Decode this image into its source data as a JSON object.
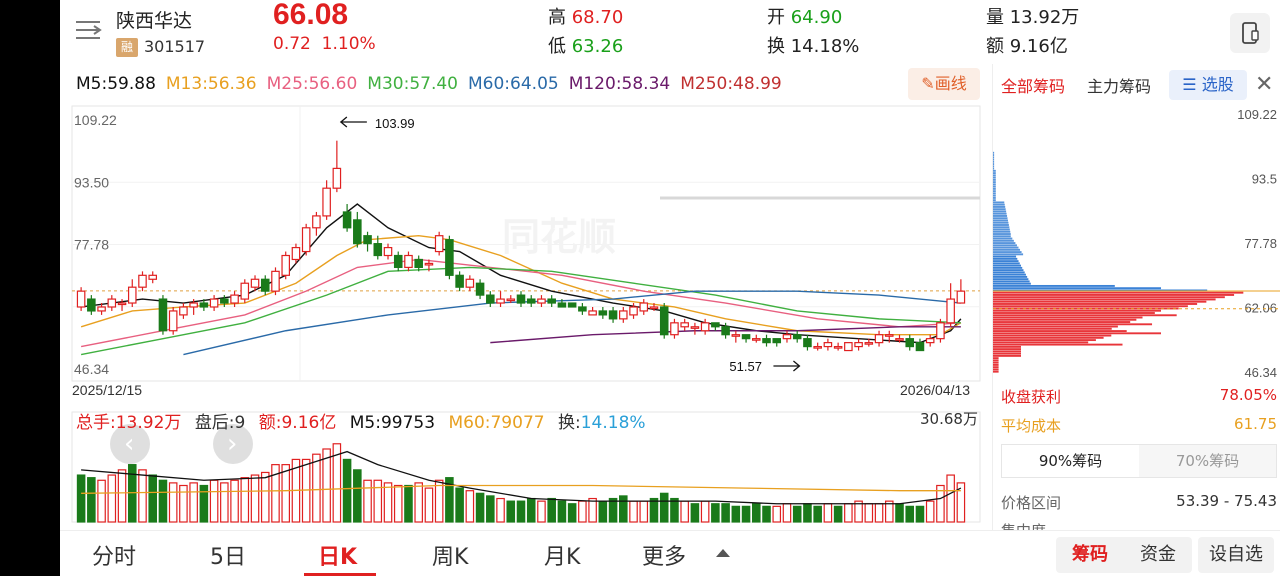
{
  "header": {
    "stock_name": "陕西华达",
    "margin_badge": "融",
    "stock_code": "301517",
    "price": "66.08",
    "change": "0.72",
    "change_pct": "1.10%",
    "high_label": "高",
    "high_value": "68.70",
    "low_label": "低",
    "low_value": "63.26",
    "open_label": "开",
    "open_value": "64.90",
    "turnover_label": "换",
    "turnover_value": "14.18%",
    "volume_label": "量",
    "volume_value": "13.92万",
    "amount_label": "额",
    "amount_value": "9.16亿"
  },
  "ma_legend": [
    {
      "text": "M5:59.88",
      "color": "#111111"
    },
    {
      "text": "M13:56.36",
      "color": "#e8a020"
    },
    {
      "text": "M25:56.60",
      "color": "#e86080"
    },
    {
      "text": "M30:57.40",
      "color": "#40b040"
    },
    {
      "text": "M60:64.05",
      "color": "#2a6aa8"
    },
    {
      "text": "M120:58.34",
      "color": "#6a1a6a"
    },
    {
      "text": "M250:48.99",
      "color": "#c03030"
    }
  ],
  "draw_button": "画线",
  "chart_data": {
    "type": "candlestick",
    "price_axis_labels": [
      "109.22",
      "93.50",
      "77.78",
      "46.34"
    ],
    "date_start": "2025/12/15",
    "date_end": "2026/04/13",
    "high_marker": "103.99",
    "low_marker": "51.57",
    "watermark": "同花顺",
    "candles": [
      [
        62,
        66,
        61,
        67
      ],
      [
        64,
        61,
        60,
        65
      ],
      [
        61,
        62,
        60,
        63
      ],
      [
        62,
        64,
        61,
        65
      ],
      [
        63,
        63,
        61,
        64
      ],
      [
        63,
        67,
        62,
        69
      ],
      [
        67,
        70,
        66,
        71
      ],
      [
        69,
        70,
        68,
        71
      ],
      [
        64,
        56,
        55,
        65
      ],
      [
        56,
        61,
        55,
        62
      ],
      [
        60,
        62,
        59,
        63
      ],
      [
        62,
        63,
        60,
        64
      ],
      [
        63,
        62,
        61,
        64
      ],
      [
        62,
        64,
        61,
        65
      ],
      [
        64,
        63,
        62,
        65
      ],
      [
        63,
        65,
        62,
        66
      ],
      [
        64,
        68,
        63,
        69
      ],
      [
        67,
        69,
        66,
        70
      ],
      [
        69,
        66,
        65,
        70
      ],
      [
        66,
        71,
        65,
        72
      ],
      [
        70,
        75,
        69,
        76
      ],
      [
        74,
        77,
        73,
        78
      ],
      [
        76,
        82,
        75,
        83
      ],
      [
        82,
        85,
        80,
        86
      ],
      [
        85,
        92,
        84,
        94
      ],
      [
        92,
        97,
        91,
        104
      ],
      [
        86,
        82,
        81,
        88
      ],
      [
        84,
        78,
        77,
        86
      ],
      [
        80,
        78,
        76,
        81
      ],
      [
        78,
        75,
        74,
        80
      ],
      [
        75,
        77,
        74,
        78
      ],
      [
        75,
        72,
        71,
        76
      ],
      [
        72,
        75,
        71,
        76
      ],
      [
        74,
        72,
        71,
        75
      ],
      [
        73,
        73,
        71,
        74
      ],
      [
        76,
        80,
        75,
        81
      ],
      [
        79,
        70,
        69,
        80
      ],
      [
        70,
        67,
        66,
        71
      ],
      [
        67,
        69,
        66,
        70
      ],
      [
        68,
        65,
        64,
        69
      ],
      [
        65,
        63,
        62,
        66
      ],
      [
        63,
        64,
        62,
        66
      ],
      [
        64,
        64,
        63,
        65
      ],
      [
        65,
        63,
        62,
        66
      ],
      [
        64,
        63,
        62,
        65
      ],
      [
        63,
        64,
        62,
        65
      ],
      [
        64,
        63,
        62,
        65
      ],
      [
        63,
        62,
        62,
        64
      ],
      [
        63,
        62,
        62,
        63
      ],
      [
        62,
        61,
        60,
        63
      ],
      [
        60,
        61,
        60,
        62
      ],
      [
        61,
        60,
        59,
        62
      ],
      [
        61,
        59,
        58,
        62
      ],
      [
        59,
        61,
        58,
        62
      ],
      [
        60,
        62,
        59,
        63
      ],
      [
        61,
        63,
        60,
        64
      ],
      [
        62,
        62,
        61,
        63
      ],
      [
        62,
        55,
        54,
        63
      ],
      [
        55,
        58,
        54,
        59
      ],
      [
        57,
        58,
        56,
        59
      ],
      [
        57,
        57,
        55,
        58
      ],
      [
        56,
        58,
        55,
        59
      ],
      [
        58,
        57,
        56,
        58
      ],
      [
        57,
        55,
        54,
        58
      ],
      [
        55,
        55,
        53,
        56
      ],
      [
        55,
        54,
        53,
        55
      ],
      [
        54,
        54,
        53,
        55
      ],
      [
        54,
        53,
        52,
        55
      ],
      [
        54,
        53,
        52,
        54
      ],
      [
        54,
        55,
        53,
        56
      ],
      [
        55,
        54,
        53,
        56
      ],
      [
        54,
        52,
        51,
        55
      ],
      [
        52,
        52,
        51,
        53
      ],
      [
        52,
        53,
        51,
        54
      ],
      [
        52,
        52,
        51,
        53
      ],
      [
        51,
        53,
        51,
        53
      ],
      [
        52,
        53,
        51,
        54
      ],
      [
        53,
        53,
        52,
        54
      ],
      [
        53,
        55,
        52,
        56
      ],
      [
        55,
        55,
        53,
        56
      ],
      [
        54,
        54,
        53,
        55
      ],
      [
        54,
        52,
        51,
        55
      ],
      [
        53,
        51,
        51,
        54
      ],
      [
        53,
        54,
        52,
        55
      ],
      [
        54,
        58,
        53,
        59
      ],
      [
        58,
        64,
        57,
        68
      ],
      [
        63,
        66,
        63,
        69
      ]
    ],
    "volumes": [
      [
        18,
        "d"
      ],
      [
        17,
        "d"
      ],
      [
        16,
        "u"
      ],
      [
        18,
        "u"
      ],
      [
        20,
        "u"
      ],
      [
        22,
        "d"
      ],
      [
        20,
        "u"
      ],
      [
        18,
        "d"
      ],
      [
        16,
        "d"
      ],
      [
        15,
        "u"
      ],
      [
        14,
        "u"
      ],
      [
        15,
        "u"
      ],
      [
        14,
        "d"
      ],
      [
        16,
        "u"
      ],
      [
        15,
        "u"
      ],
      [
        16,
        "u"
      ],
      [
        17,
        "u"
      ],
      [
        18,
        "u"
      ],
      [
        19,
        "u"
      ],
      [
        22,
        "u"
      ],
      [
        22,
        "u"
      ],
      [
        24,
        "u"
      ],
      [
        24,
        "u"
      ],
      [
        26,
        "u"
      ],
      [
        28,
        "u"
      ],
      [
        30,
        "u"
      ],
      [
        24,
        "d"
      ],
      [
        20,
        "d"
      ],
      [
        16,
        "u"
      ],
      [
        16,
        "u"
      ],
      [
        15,
        "u"
      ],
      [
        14,
        "u"
      ],
      [
        14,
        "d"
      ],
      [
        15,
        "u"
      ],
      [
        13,
        "u"
      ],
      [
        16,
        "u"
      ],
      [
        17,
        "d"
      ],
      [
        13,
        "d"
      ],
      [
        12,
        "u"
      ],
      [
        11,
        "d"
      ],
      [
        10,
        "d"
      ],
      [
        9,
        "u"
      ],
      [
        8,
        "d"
      ],
      [
        8,
        "d"
      ],
      [
        9,
        "d"
      ],
      [
        8,
        "u"
      ],
      [
        9,
        "d"
      ],
      [
        8,
        "d"
      ],
      [
        7,
        "d"
      ],
      [
        8,
        "u"
      ],
      [
        9,
        "u"
      ],
      [
        8,
        "d"
      ],
      [
        9,
        "d"
      ],
      [
        10,
        "d"
      ],
      [
        8,
        "u"
      ],
      [
        8,
        "u"
      ],
      [
        9,
        "d"
      ],
      [
        11,
        "d"
      ],
      [
        9,
        "d"
      ],
      [
        8,
        "u"
      ],
      [
        7,
        "d"
      ],
      [
        8,
        "u"
      ],
      [
        7,
        "d"
      ],
      [
        7,
        "d"
      ],
      [
        6,
        "d"
      ],
      [
        6,
        "d"
      ],
      [
        7,
        "d"
      ],
      [
        6,
        "d"
      ],
      [
        6,
        "u"
      ],
      [
        7,
        "u"
      ],
      [
        6,
        "d"
      ],
      [
        7,
        "d"
      ],
      [
        6,
        "d"
      ],
      [
        7,
        "u"
      ],
      [
        6,
        "d"
      ],
      [
        7,
        "u"
      ],
      [
        8,
        "u"
      ],
      [
        7,
        "u"
      ],
      [
        7,
        "u"
      ],
      [
        8,
        "u"
      ],
      [
        7,
        "d"
      ],
      [
        6,
        "d"
      ],
      [
        6,
        "d"
      ],
      [
        8,
        "u"
      ],
      [
        14,
        "u"
      ],
      [
        18,
        "u"
      ],
      [
        15,
        "u"
      ]
    ],
    "ma_lines": {
      "ma5": [
        [
          0,
          62
        ],
        [
          6,
          64
        ],
        [
          10,
          63
        ],
        [
          16,
          65
        ],
        [
          20,
          70
        ],
        [
          24,
          82
        ],
        [
          27,
          88
        ],
        [
          30,
          82
        ],
        [
          34,
          77
        ],
        [
          37,
          76
        ],
        [
          41,
          70
        ],
        [
          46,
          66
        ],
        [
          52,
          63
        ],
        [
          57,
          61
        ],
        [
          61,
          58
        ],
        [
          66,
          56
        ],
        [
          70,
          55
        ],
        [
          76,
          54
        ],
        [
          82,
          53
        ],
        [
          85,
          56
        ],
        [
          86,
          59
        ]
      ],
      "ma13": [
        [
          0,
          57
        ],
        [
          5,
          61
        ],
        [
          10,
          62
        ],
        [
          16,
          63
        ],
        [
          21,
          68
        ],
        [
          25,
          75
        ],
        [
          28,
          79
        ],
        [
          33,
          80
        ],
        [
          36,
          79
        ],
        [
          41,
          75
        ],
        [
          47,
          68
        ],
        [
          52,
          64
        ],
        [
          58,
          62
        ],
        [
          63,
          59
        ],
        [
          70,
          56
        ],
        [
          78,
          55
        ],
        [
          84,
          55
        ],
        [
          86,
          58
        ]
      ],
      "ma25": [
        [
          0,
          52
        ],
        [
          8,
          56
        ],
        [
          16,
          60
        ],
        [
          22,
          66
        ],
        [
          27,
          72
        ],
        [
          33,
          74
        ],
        [
          40,
          72
        ],
        [
          47,
          70
        ],
        [
          55,
          66
        ],
        [
          63,
          63
        ],
        [
          72,
          59
        ],
        [
          80,
          57
        ],
        [
          86,
          58
        ]
      ],
      "ma30": [
        [
          0,
          50
        ],
        [
          8,
          54
        ],
        [
          16,
          58
        ],
        [
          24,
          65
        ],
        [
          30,
          71
        ],
        [
          38,
          72
        ],
        [
          46,
          71
        ],
        [
          54,
          68
        ],
        [
          62,
          65
        ],
        [
          70,
          61
        ],
        [
          78,
          59
        ],
        [
          86,
          58
        ]
      ],
      "ma60": [
        [
          10,
          50
        ],
        [
          20,
          56
        ],
        [
          30,
          60
        ],
        [
          40,
          63
        ],
        [
          52,
          64
        ],
        [
          60,
          66
        ],
        [
          70,
          66
        ],
        [
          78,
          65
        ],
        [
          86,
          63
        ]
      ],
      "ma120": [
        [
          40,
          53
        ],
        [
          50,
          55
        ],
        [
          60,
          56
        ],
        [
          70,
          56
        ],
        [
          80,
          57
        ],
        [
          86,
          57
        ]
      ],
      "vol_ma5": [
        [
          0,
          20
        ],
        [
          6,
          18
        ],
        [
          12,
          16
        ],
        [
          18,
          17
        ],
        [
          22,
          22
        ],
        [
          26,
          27
        ],
        [
          29,
          22
        ],
        [
          34,
          16
        ],
        [
          38,
          13
        ],
        [
          44,
          9
        ],
        [
          50,
          8
        ],
        [
          56,
          8
        ],
        [
          62,
          8
        ],
        [
          68,
          7
        ],
        [
          74,
          7
        ],
        [
          80,
          7
        ],
        [
          84,
          9
        ],
        [
          86,
          13
        ]
      ],
      "vol_ma60": [
        [
          0,
          11
        ],
        [
          20,
          12
        ],
        [
          35,
          14
        ],
        [
          50,
          14
        ],
        [
          65,
          13
        ],
        [
          80,
          12
        ],
        [
          86,
          12
        ]
      ]
    }
  },
  "volume_legend": {
    "total": "总手:13.92万",
    "after_hours": "盘后:9",
    "amount": "额:9.16亿",
    "m5": "M5:99753",
    "m60": "M60:79077",
    "turnover_label": "换:",
    "turnover_value": "14.18%",
    "max": "30.68万"
  },
  "chip_panel": {
    "tab_all": "全部筹码",
    "tab_main": "主力筹码",
    "pick_stock": "选股",
    "axis_labels": [
      "109.22",
      "93.5",
      "77.78",
      "62.06",
      "46.34"
    ],
    "profit_label": "收盘获利",
    "profit_value": "78.05%",
    "avg_cost_label": "平均成本",
    "avg_cost_value": "61.75",
    "seg_90": "90%筹码",
    "seg_70": "70%筹码",
    "range_label": "价格区间",
    "range_value": "53.39 - 75.43",
    "concentration_label": "集中度"
  },
  "bottom_tabs": {
    "fenshi": "分时",
    "wuri": "5日",
    "rik": "日K",
    "zhouk": "周K",
    "yuek": "月K",
    "more": "更多",
    "chips": "筹码",
    "capital": "资金",
    "settings": "设自选"
  }
}
